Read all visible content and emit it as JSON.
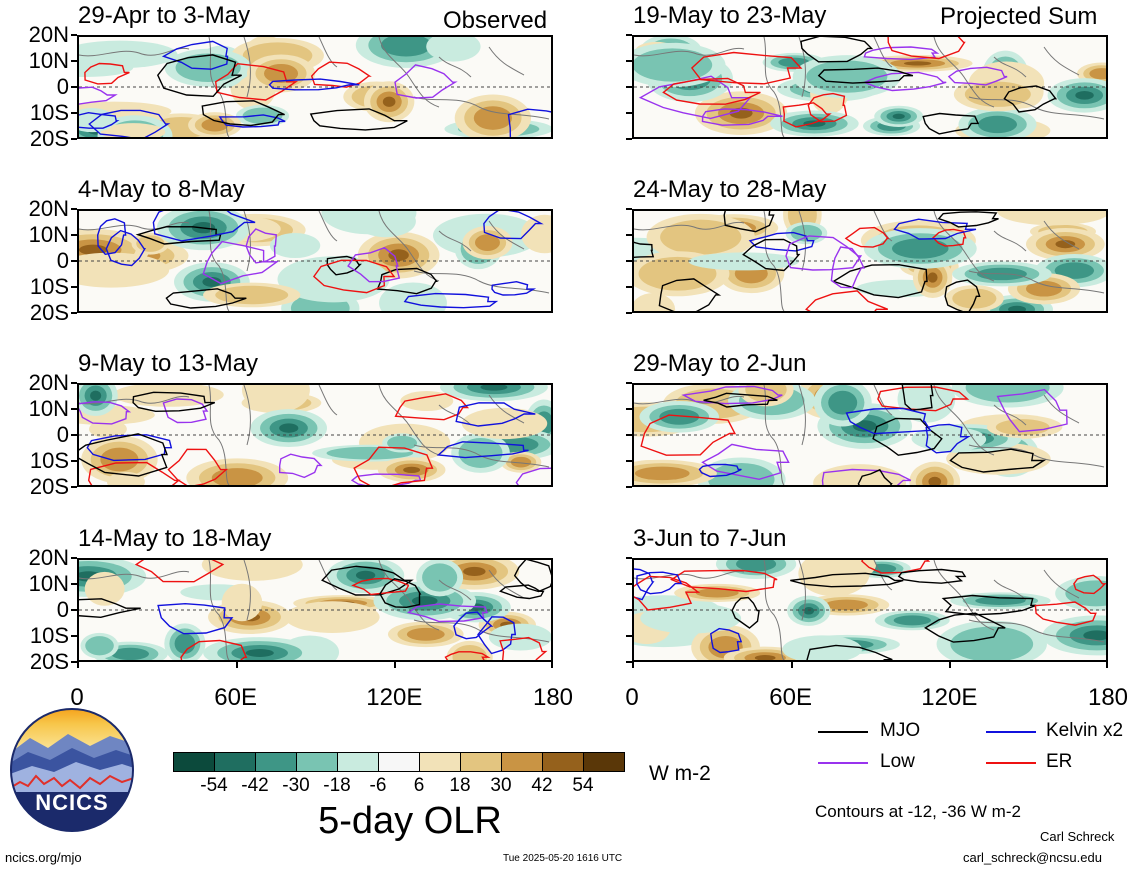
{
  "header": {
    "left_title": "Observed",
    "right_title": "Projected Sum"
  },
  "lat_labels": [
    "20N",
    "10N",
    "0",
    "10S",
    "20S"
  ],
  "lon_labels": [
    "0",
    "60E",
    "120E",
    "180"
  ],
  "panels": [
    {
      "date": "29-Apr to 3-May"
    },
    {
      "date": "4-May to 8-May"
    },
    {
      "date": "9-May to 13-May"
    },
    {
      "date": "14-May to 18-May"
    },
    {
      "date": "19-May to 23-May"
    },
    {
      "date": "24-May to 28-May"
    },
    {
      "date": "29-May to 2-Jun"
    },
    {
      "date": "3-Jun to 7-Jun"
    }
  ],
  "colorbar": {
    "title": "5-day OLR",
    "units": "W m-2",
    "labels": [
      "-54",
      "-42",
      "-30",
      "-18",
      "-6",
      "6",
      "18",
      "30",
      "42",
      "54"
    ],
    "colors": [
      "#0c4a3c",
      "#1f6e60",
      "#3e9686",
      "#79c4b2",
      "#c9ebdf",
      "#f7f7f7",
      "#f2e2b8",
      "#e3c580",
      "#c99444",
      "#95611c",
      "#5a3708"
    ]
  },
  "legend": {
    "items": [
      {
        "label": "MJO",
        "color": "#000000"
      },
      {
        "label": "Kelvin x2",
        "color": "#1111dd"
      },
      {
        "label": "Low",
        "color": "#9933ee"
      },
      {
        "label": "ER",
        "color": "#ee1111"
      }
    ],
    "contours_note": "Contours at -12, -36 W m-2"
  },
  "logo": {
    "text": "NCICS"
  },
  "footer": {
    "url": "ncics.org/mjo",
    "timestamp": "Tue 2025-05-20 1616 UTC",
    "author": "Carl Schreck",
    "email": "carl_schreck@ncsu.edu"
  },
  "chart_data": {
    "type": "heatmap",
    "title": "5-day OLR",
    "units": "W m-2",
    "xlabel": "",
    "ylabel": "",
    "x_ticks": [
      "0",
      "60E",
      "120E",
      "180"
    ],
    "y_ticks": [
      "20N",
      "10N",
      "0",
      "10S",
      "20S"
    ],
    "xlim": [
      0,
      180
    ],
    "ylim": [
      -20,
      20
    ],
    "contour_levels": [
      -12,
      -36
    ],
    "color_levels": [
      -54,
      -42,
      -30,
      -18,
      -6,
      6,
      18,
      30,
      42,
      54
    ],
    "panels": [
      {
        "period": "29-Apr to 3-May",
        "kind": "Observed"
      },
      {
        "period": "4-May to 8-May",
        "kind": "Observed"
      },
      {
        "period": "9-May to 13-May",
        "kind": "Observed"
      },
      {
        "period": "14-May to 18-May",
        "kind": "Observed"
      },
      {
        "period": "19-May to 23-May",
        "kind": "Projected Sum"
      },
      {
        "period": "24-May to 28-May",
        "kind": "Projected Sum"
      },
      {
        "period": "29-May to 2-Jun",
        "kind": "Projected Sum"
      },
      {
        "period": "3-Jun to 7-Jun",
        "kind": "Projected Sum"
      }
    ],
    "legend": [
      "MJO",
      "Kelvin x2",
      "Low",
      "ER"
    ]
  }
}
